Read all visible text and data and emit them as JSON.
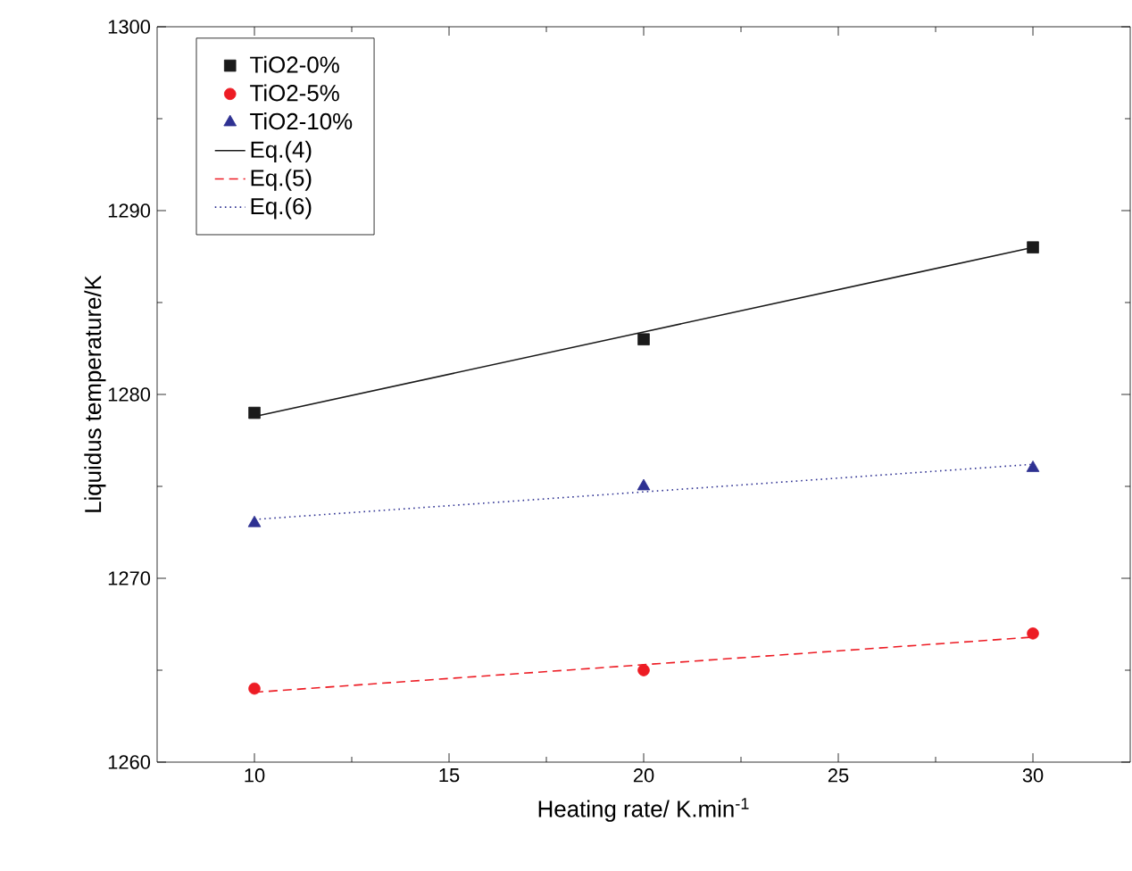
{
  "chart_data": {
    "type": "scatter",
    "xlabel": "Heating rate/ K.min$^{-1}$",
    "ylabel": "Liquidus temperature/K",
    "x": [
      10,
      20,
      30
    ],
    "series": [
      {
        "name": "TiO2-0%",
        "marker": "square",
        "color": "#1a1a1a",
        "values": [
          1279,
          1283,
          1288
        ]
      },
      {
        "name": "TiO2-5%",
        "marker": "circle",
        "color": "#ed1c24",
        "values": [
          1264,
          1265,
          1267
        ]
      },
      {
        "name": "TiO2-10%",
        "marker": "triangle",
        "color": "#2e3192",
        "values": [
          1273,
          1275,
          1276
        ]
      },
      {
        "name": "Eq.(4)",
        "type": "line",
        "line_style": "solid",
        "marker": "none",
        "color": "#1a1a1a",
        "values": [
          1278.8,
          1283.4,
          1288
        ]
      },
      {
        "name": "Eq.(5)",
        "type": "line",
        "line_style": "dashed",
        "marker": "none",
        "color": "#ed1c24",
        "values": [
          1263.8,
          1265.3,
          1266.8
        ]
      },
      {
        "name": "Eq.(6)",
        "type": "line",
        "line_style": "dotted",
        "marker": "none",
        "color": "#2e3192",
        "values": [
          1273.2,
          1274.7,
          1276.2
        ]
      }
    ],
    "xlim": [
      7.5,
      32.5
    ],
    "xticks": [
      10,
      15,
      20,
      25,
      30
    ],
    "ylim": [
      1260,
      1300
    ],
    "yticks": [
      1260,
      1270,
      1280,
      1290,
      1300
    ],
    "grid": false,
    "legend": "top left"
  }
}
